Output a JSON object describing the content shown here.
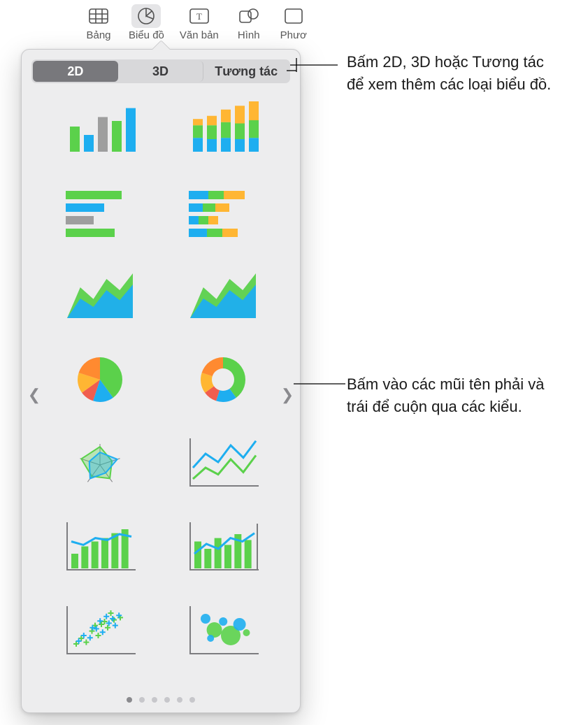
{
  "toolbar": {
    "items": [
      {
        "label": "Bảng",
        "icon": "table-icon",
        "active": false
      },
      {
        "label": "Biểu đồ",
        "icon": "chart-icon",
        "active": true
      },
      {
        "label": "Văn bản",
        "icon": "text-icon",
        "active": false
      },
      {
        "label": "Hình",
        "icon": "shape-icon",
        "active": false
      },
      {
        "label": "Phươ",
        "icon": "media-icon",
        "active": false
      }
    ]
  },
  "segmented": {
    "options": [
      {
        "label": "2D",
        "active": true
      },
      {
        "label": "3D",
        "active": false
      },
      {
        "label": "Tương tác",
        "active": false
      }
    ]
  },
  "colors": {
    "blue": "#1eaef0",
    "green": "#5bd14b",
    "gray": "#9e9e9e",
    "yellow": "#ffb633",
    "orange": "#ff8a30",
    "red": "#f05d4e",
    "axis": "#7d7d80",
    "tile_bg": "transparent"
  },
  "charts": [
    {
      "name": "bar-chart",
      "type": "bar",
      "values": [
        45,
        30,
        62,
        55,
        78
      ],
      "colors": [
        "#5bd14b",
        "#1eaef0",
        "#9e9e9e",
        "#5bd14b",
        "#1eaef0"
      ]
    },
    {
      "name": "stacked-bar-chart",
      "type": "stacked-bar",
      "stacks": [
        [
          22,
          20,
          10
        ],
        [
          20,
          22,
          15
        ],
        [
          22,
          25,
          20
        ],
        [
          20,
          25,
          28
        ],
        [
          22,
          28,
          30
        ]
      ],
      "stack_colors": [
        "#1eaef0",
        "#5bd14b",
        "#ffb633"
      ]
    },
    {
      "name": "hbar-chart",
      "type": "hbar",
      "values": [
        80,
        55,
        40,
        70
      ],
      "colors": [
        "#5bd14b",
        "#1eaef0",
        "#9e9e9e",
        "#5bd14b"
      ]
    },
    {
      "name": "stacked-hbar-chart",
      "type": "stacked-hbar",
      "stacks": [
        [
          28,
          22,
          30
        ],
        [
          20,
          18,
          20
        ],
        [
          14,
          14,
          14
        ],
        [
          26,
          22,
          22
        ]
      ],
      "stack_colors": [
        "#1eaef0",
        "#5bd14b",
        "#ffb633"
      ]
    },
    {
      "name": "area-chart",
      "type": "area",
      "series": [
        {
          "color": "#5bd14b",
          "points": [
            0,
            55,
            34,
            70,
            50,
            80
          ]
        },
        {
          "color": "#1eaef0",
          "points": [
            0,
            35,
            20,
            50,
            32,
            60
          ]
        }
      ]
    },
    {
      "name": "stacked-area-chart",
      "type": "area",
      "series": [
        {
          "color": "#5bd14b",
          "points": [
            0,
            55,
            34,
            70,
            50,
            80
          ]
        },
        {
          "color": "#1eaef0",
          "points": [
            0,
            35,
            20,
            50,
            32,
            60
          ]
        }
      ]
    },
    {
      "name": "pie-chart",
      "type": "pie",
      "slices": [
        40,
        15,
        10,
        15,
        20
      ],
      "colors": [
        "#5bd14b",
        "#1eaef0",
        "#f05d4e",
        "#ffb633",
        "#ff8a30"
      ]
    },
    {
      "name": "donut-chart",
      "type": "donut",
      "slices": [
        40,
        15,
        10,
        15,
        20
      ],
      "colors": [
        "#5bd14b",
        "#1eaef0",
        "#f05d4e",
        "#ffb633",
        "#ff8a30"
      ]
    },
    {
      "name": "radar-chart",
      "type": "radar",
      "colors": [
        "#5bd14b",
        "#1eaef0"
      ]
    },
    {
      "name": "line-chart",
      "type": "line",
      "series": [
        {
          "color": "#1eaef0",
          "points": [
            30,
            55,
            40,
            70,
            48,
            78
          ]
        },
        {
          "color": "#5bd14b",
          "points": [
            10,
            30,
            18,
            45,
            22,
            52
          ]
        }
      ]
    },
    {
      "name": "combo-chart",
      "type": "combo",
      "bars": {
        "values": [
          30,
          45,
          55,
          62,
          72,
          80
        ],
        "color": "#5bd14b"
      },
      "line": {
        "points": [
          55,
          48,
          62,
          58,
          70,
          65
        ],
        "color": "#1eaef0"
      }
    },
    {
      "name": "two-axis-chart",
      "type": "two-axis",
      "bars": {
        "values": [
          55,
          40,
          62,
          48,
          70,
          58
        ],
        "color": "#5bd14b"
      },
      "line": {
        "points": [
          30,
          50,
          40,
          62,
          55,
          72
        ],
        "color": "#1eaef0"
      }
    },
    {
      "name": "scatter-chart",
      "type": "scatter",
      "points_a": {
        "color": "#5bd14b",
        "xy": [
          [
            10,
            15
          ],
          [
            18,
            25
          ],
          [
            26,
            18
          ],
          [
            35,
            38
          ],
          [
            45,
            30
          ],
          [
            50,
            50
          ],
          [
            60,
            44
          ],
          [
            70,
            58
          ],
          [
            80,
            62
          ],
          [
            65,
            70
          ],
          [
            55,
            55
          ],
          [
            40,
            48
          ]
        ]
      },
      "points_b": {
        "color": "#1eaef0",
        "xy": [
          [
            14,
            20
          ],
          [
            22,
            30
          ],
          [
            32,
            26
          ],
          [
            42,
            42
          ],
          [
            52,
            36
          ],
          [
            62,
            52
          ],
          [
            72,
            48
          ],
          [
            78,
            66
          ],
          [
            68,
            60
          ],
          [
            58,
            64
          ],
          [
            48,
            56
          ],
          [
            36,
            44
          ]
        ]
      }
    },
    {
      "name": "bubble-chart",
      "type": "bubble",
      "bubbles": [
        {
          "x": 20,
          "y": 60,
          "r": 7,
          "c": "#1eaef0"
        },
        {
          "x": 34,
          "y": 40,
          "r": 11,
          "c": "#5bd14b"
        },
        {
          "x": 48,
          "y": 55,
          "r": 6,
          "c": "#1eaef0"
        },
        {
          "x": 60,
          "y": 30,
          "r": 14,
          "c": "#5bd14b"
        },
        {
          "x": 74,
          "y": 50,
          "r": 9,
          "c": "#1eaef0"
        },
        {
          "x": 85,
          "y": 35,
          "r": 5,
          "c": "#5bd14b"
        },
        {
          "x": 28,
          "y": 25,
          "r": 5,
          "c": "#1eaef0"
        }
      ]
    }
  ],
  "pager": {
    "count": 6,
    "active": 0
  },
  "callouts": {
    "tabs": "Bấm 2D, 3D hoặc Tương tác để xem thêm các loại biểu đồ.",
    "arrows": "Bấm vào các mũi tên phải và trái để cuộn qua các kiểu."
  }
}
